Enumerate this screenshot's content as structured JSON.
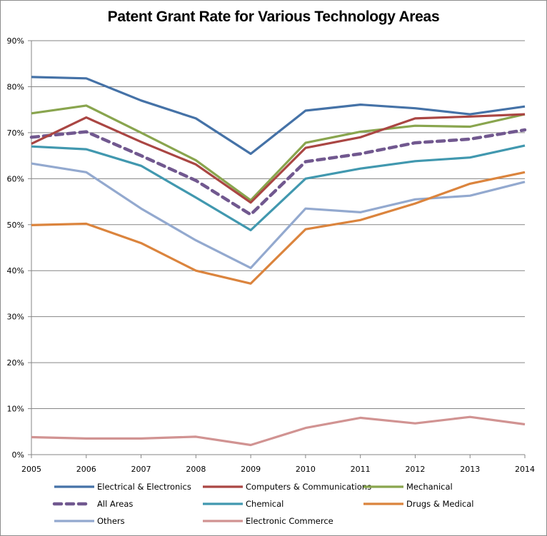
{
  "chart_data": {
    "type": "line",
    "title": "Patent Grant Rate for Various Technology Areas",
    "xlabel": "",
    "ylabel": "",
    "x": [
      "2005",
      "2006",
      "2007",
      "2008",
      "2009",
      "2010",
      "2011",
      "2012",
      "2013",
      "2014"
    ],
    "ylim": [
      0,
      90
    ],
    "y_ticks": [
      "0%",
      "10%",
      "20%",
      "30%",
      "40%",
      "50%",
      "60%",
      "70%",
      "80%",
      "90%"
    ],
    "y_tick_values": [
      0,
      10,
      20,
      30,
      40,
      50,
      60,
      70,
      80,
      90
    ],
    "y_unit": "%",
    "grid": "horizontal",
    "legend_position": "bottom",
    "series": [
      {
        "name": "Electrical & Electronics",
        "color": "#4572a7",
        "dash": false,
        "values": [
          82.1,
          81.8,
          77.0,
          73.1,
          65.4,
          74.8,
          76.1,
          75.3,
          74.0,
          75.7
        ]
      },
      {
        "name": "Computers & Communications",
        "color": "#aa4643",
        "dash": false,
        "values": [
          67.6,
          73.3,
          68.0,
          63.1,
          54.8,
          66.7,
          69.0,
          73.1,
          73.5,
          74.0
        ]
      },
      {
        "name": "Mechanical",
        "color": "#89a54e",
        "dash": false,
        "values": [
          74.2,
          75.9,
          70.0,
          64.0,
          55.3,
          67.8,
          70.2,
          71.5,
          71.3,
          74.0
        ]
      },
      {
        "name": "All Areas",
        "color": "#71588f",
        "dash": true,
        "values": [
          69.0,
          70.2,
          65.0,
          59.6,
          52.2,
          63.7,
          65.4,
          67.8,
          68.6,
          70.6
        ]
      },
      {
        "name": "Chemical",
        "color": "#4198af",
        "dash": false,
        "values": [
          67.0,
          66.4,
          62.8,
          55.9,
          48.8,
          60.0,
          62.2,
          63.8,
          64.6,
          67.2
        ]
      },
      {
        "name": "Drugs & Medical",
        "color": "#db843d",
        "dash": false,
        "values": [
          49.9,
          50.2,
          46.0,
          40.0,
          37.2,
          49.0,
          51.0,
          54.6,
          58.9,
          61.4
        ]
      },
      {
        "name": "Others",
        "color": "#93a9cf",
        "dash": false,
        "values": [
          63.3,
          61.4,
          53.5,
          46.6,
          40.6,
          53.5,
          52.7,
          55.5,
          56.3,
          59.3
        ]
      },
      {
        "name": "Electronic Commerce",
        "color": "#d19392",
        "dash": false,
        "values": [
          3.8,
          3.5,
          3.5,
          3.9,
          2.1,
          5.8,
          8.0,
          6.8,
          8.2,
          6.6
        ]
      }
    ]
  }
}
